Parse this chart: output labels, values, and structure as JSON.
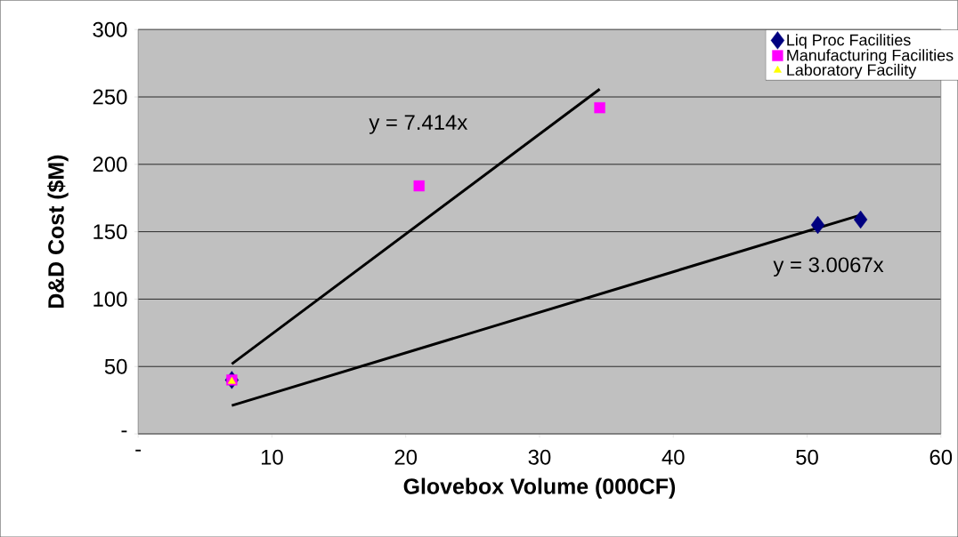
{
  "chart_data": {
    "type": "scatter",
    "xlabel": "Glovebox Volume (000CF)",
    "ylabel": "D&D Cost ($M)",
    "xlim": [
      0,
      60
    ],
    "ylim": [
      0,
      300
    ],
    "xticks": [
      {
        "value": 0,
        "label": "-"
      },
      10,
      20,
      30,
      40,
      50,
      60
    ],
    "yticks": [
      {
        "value": 0,
        "label": "-"
      },
      50,
      100,
      150,
      200,
      250,
      300
    ],
    "grid": "y",
    "legend": "top right",
    "series": [
      {
        "name": "Liq Proc Facilities",
        "color": "#000080",
        "marker": "diamond",
        "x": [
          7,
          50.8,
          54.0
        ],
        "values": [
          40,
          155,
          159
        ]
      },
      {
        "name": "Manufacturing Facilities",
        "color": "#ff00ff",
        "marker": "square",
        "x": [
          7,
          21,
          34.5
        ],
        "values": [
          40,
          184,
          242
        ]
      },
      {
        "name": "Laboratory Facility",
        "color": "#ffff00",
        "marker": "triangle",
        "x": [
          7
        ],
        "values": [
          39
        ]
      },
      {
        "type": "line",
        "color": "#000000",
        "marker": "none",
        "x": [
          7,
          34.5
        ],
        "values": [
          51.9,
          255.8
        ]
      },
      {
        "type": "line",
        "color": "#000000",
        "marker": "none",
        "x": [
          7,
          54
        ],
        "values": [
          21,
          162.4
        ]
      }
    ],
    "annotations": [
      "y = 7.414x",
      "y = 3.0067x"
    ]
  }
}
